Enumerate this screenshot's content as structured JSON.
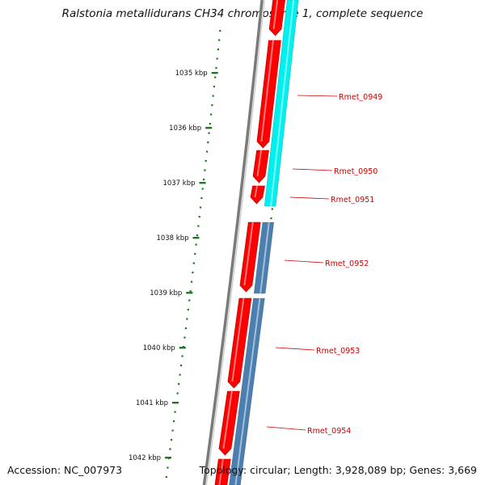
{
  "title": "Ralstonia metallidurans CH34 chromosome 1, complete sequence",
  "accession": "Accession: NC_007973",
  "topology": "Topology: circular; Length: 3,928,089 bp; Genes: 3,669",
  "colors": {
    "tick": "#1e7a1e",
    "backbone": "#7a7a7a",
    "gene": "#ff0000",
    "cds_cyan": "#00f0f0",
    "cds_blue": "#4a7fb0",
    "gene_label": "#cc0000"
  },
  "ruler": {
    "ticks": [
      {
        "kbp": 1035,
        "label": "1035 kbp"
      },
      {
        "kbp": 1036,
        "label": "1036 kbp"
      },
      {
        "kbp": 1037,
        "label": "1037 kbp"
      },
      {
        "kbp": 1038,
        "label": "1038 kbp"
      },
      {
        "kbp": 1039,
        "label": "1039 kbp"
      },
      {
        "kbp": 1040,
        "label": "1040 kbp"
      },
      {
        "kbp": 1041,
        "label": "1041 kbp"
      },
      {
        "kbp": 1042,
        "label": "1042 kbp"
      }
    ]
  },
  "genes": [
    {
      "label": "Rmet_0949"
    },
    {
      "label": "Rmet_0950"
    },
    {
      "label": "Rmet_0951"
    },
    {
      "label": "Rmet_0952"
    },
    {
      "label": "Rmet_0953"
    },
    {
      "label": "Rmet_0954"
    }
  ]
}
